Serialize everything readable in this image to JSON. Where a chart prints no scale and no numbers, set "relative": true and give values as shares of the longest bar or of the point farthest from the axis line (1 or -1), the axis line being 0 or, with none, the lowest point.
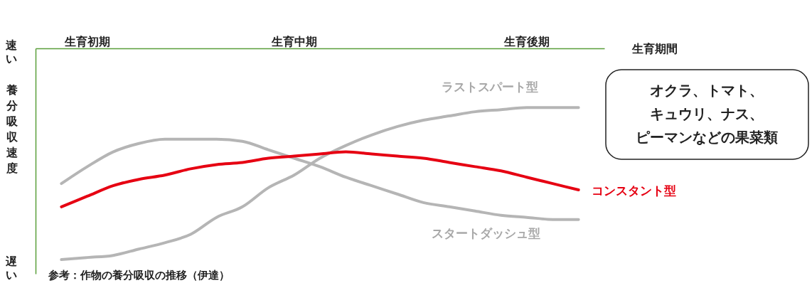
{
  "chart_data": {
    "type": "line",
    "relative": true,
    "xlabel": "生育期間",
    "ylabel": "養分吸収速度",
    "categories": [
      null,
      "生育初期",
      null,
      null,
      null,
      null,
      null,
      null,
      null,
      "生育中期",
      null,
      null,
      null,
      null,
      null,
      null,
      null,
      null,
      "生育後期",
      null,
      null
    ],
    "series": [
      {
        "name": "ラストスパート型",
        "color": "#b5b5b5",
        "values": [
          -1,
          -0.99,
          -0.98,
          -0.95,
          -0.92,
          -0.88,
          -0.8,
          -0.75,
          -0.66,
          -0.6,
          -0.52,
          -0.46,
          -0.41,
          -0.37,
          -0.34,
          -0.32,
          -0.3,
          -0.29,
          -0.28,
          -0.28,
          -0.28
        ]
      },
      {
        "name": "スタートダッシュ型",
        "color": "#b5b5b5",
        "values": [
          -0.64,
          -0.56,
          -0.49,
          -0.45,
          -0.43,
          -0.43,
          -0.43,
          -0.44,
          -0.48,
          -0.52,
          -0.56,
          -0.61,
          -0.65,
          -0.69,
          -0.73,
          -0.75,
          -0.77,
          -0.79,
          -0.8,
          -0.81,
          -0.81
        ]
      },
      {
        "name": "コンスタント型",
        "color": "#e60012",
        "values": [
          -0.75,
          -0.7,
          -0.65,
          -0.62,
          -0.6,
          -0.57,
          -0.55,
          -0.54,
          -0.52,
          -0.51,
          -0.5,
          -0.49,
          -0.5,
          -0.51,
          -0.52,
          -0.54,
          -0.56,
          -0.58,
          -0.61,
          -0.64,
          -0.67
        ]
      }
    ],
    "annotations": [
      "速い",
      "遅い",
      "オクラ、トマト、キュウリ、ナス、ピーマンなどの果菜類",
      "参考：作物の養分吸収の推移（伊達）"
    ]
  }
}
